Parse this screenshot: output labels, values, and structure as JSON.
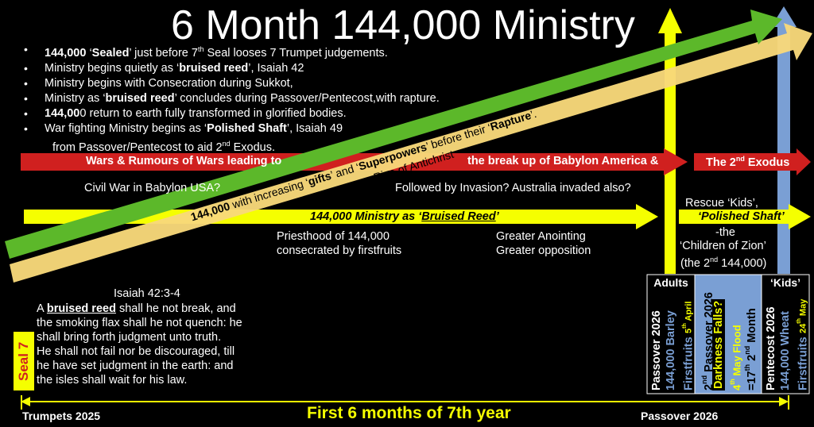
{
  "title": "6 Month 144,000 Ministry",
  "bullets": [
    {
      "pre": "",
      "b1": "144,000",
      "mid1": " ‘",
      "b2": "Sealed",
      "mid2": "’ just before 7",
      "sup": "th",
      "post": " Seal looses 7 Trumpet judgements."
    },
    {
      "pre": "Ministry begins quietly as ‘",
      "b1": "bruised reed",
      "mid1": "’, Isaiah 42",
      "b2": "",
      "mid2": "",
      "sup": "",
      "post": ""
    },
    {
      "pre": "Ministry begins with Consecration during Sukkot,",
      "b1": "",
      "mid1": "",
      "b2": "",
      "mid2": "",
      "sup": "",
      "post": ""
    },
    {
      "pre": "Ministry as ‘",
      "b1": "bruised reed",
      "mid1": "’ concludes during Passover/Pentecost,with rapture.",
      "b2": "",
      "mid2": "",
      "sup": "",
      "post": ""
    },
    {
      "pre": "",
      "b1": "144,00",
      "mid1": "0 return to earth fully transformed in glorified bodies.",
      "b2": "",
      "mid2": "",
      "sup": "",
      "post": ""
    },
    {
      "pre": "War fighting Ministry begins as ‘",
      "b1": "Polished Shaft",
      "mid1": "’, Isaiah 49",
      "b2": "",
      "mid2": "",
      "sup": "",
      "post": ""
    }
  ],
  "bullet_cont": {
    "pre": "from Passover/Pentecost to aid 2",
    "sup": "nd",
    "post": " Exodus."
  },
  "green_arrow": {
    "pre": "144,000",
    "mid1": " with increasing ‘",
    "b1": "gifts",
    "mid2": "’ and ‘",
    "b2": "Superpowers",
    "mid3": "’ before their ‘",
    "b3": "Rapture",
    "post": "’."
  },
  "orange_arrow": "Rise of Antichrist",
  "red_left": "Wars & Rumours of Wars leading to",
  "red_mid": "the break up of Babylon America &",
  "red_right": {
    "pre": "The 2",
    "sup": "nd",
    "post": " Exodus"
  },
  "civil_war": "Civil War in Babylon USA?",
  "invasion": "Followed by Invasion? Australia invaded also?",
  "yellow_main": {
    "pre": "144,000 Ministry as ‘",
    "u": "Bruised Reed",
    "post": "’"
  },
  "priesthood": [
    "Priesthood of 144,000",
    "consecrated by firstfruits"
  ],
  "anointing": [
    "Greater Anointing",
    "Greater opposition"
  ],
  "rescue": {
    "l1": "Rescue ‘Kids’,",
    "shaft": "‘Polished Shaft’",
    "l3": "-the",
    "l4": "‘Children of Zion’",
    "l5pre": "(the 2",
    "l5sup": "nd",
    "l5post": " 144,000)"
  },
  "isaiah": {
    "ref": "Isaiah 42:3-4",
    "l1pre": "A ",
    "l1u": "bruised reed",
    "l1post": " shall he not break, and",
    "lines": [
      "the smoking flax shall he not quench: he",
      "shall bring forth judgment unto truth.",
      "He shall not fail nor be discouraged, till",
      "he have set judgment in the earth: and",
      "the isles shall wait for his law."
    ]
  },
  "seal7": "Seal 7",
  "adults": "Adults",
  "kids": "‘Kids’",
  "col_passover": {
    "l1": "Passover 2026",
    "l2": "144,000 Barley",
    "l3": "Firstfruits",
    "l3b": "5",
    "l3sup": "th",
    "l3c": " April"
  },
  "col_second": {
    "l1pre": "2",
    "l1sup": "nd",
    "l1post": " Passover 2026",
    "l2": "Darkness Falls?",
    "l3a": "4",
    "l3sup": "th",
    "l3b": " May Flood",
    "l4a": "=17",
    "l4sup": "th",
    "l4b": " 2",
    "l4sup2": "nd",
    "l4c": " Month"
  },
  "col_pentecost": {
    "l1": "Pentecost 2026",
    "l2": "144,000 Wheat",
    "l3": "Firstfruits",
    "l3b": "24",
    "l3sup": "th",
    "l3c": " May"
  },
  "bottom_left": "Trumpets 2025",
  "bottom_mid": "First 6 months of 7th year",
  "bottom_right": "Passover 2026",
  "colors": {
    "red": "#d0201f",
    "yellow": "#f5ff00",
    "green": "#5cb82a",
    "orange": "#f8d87a",
    "blue": "#7a9fd4"
  }
}
